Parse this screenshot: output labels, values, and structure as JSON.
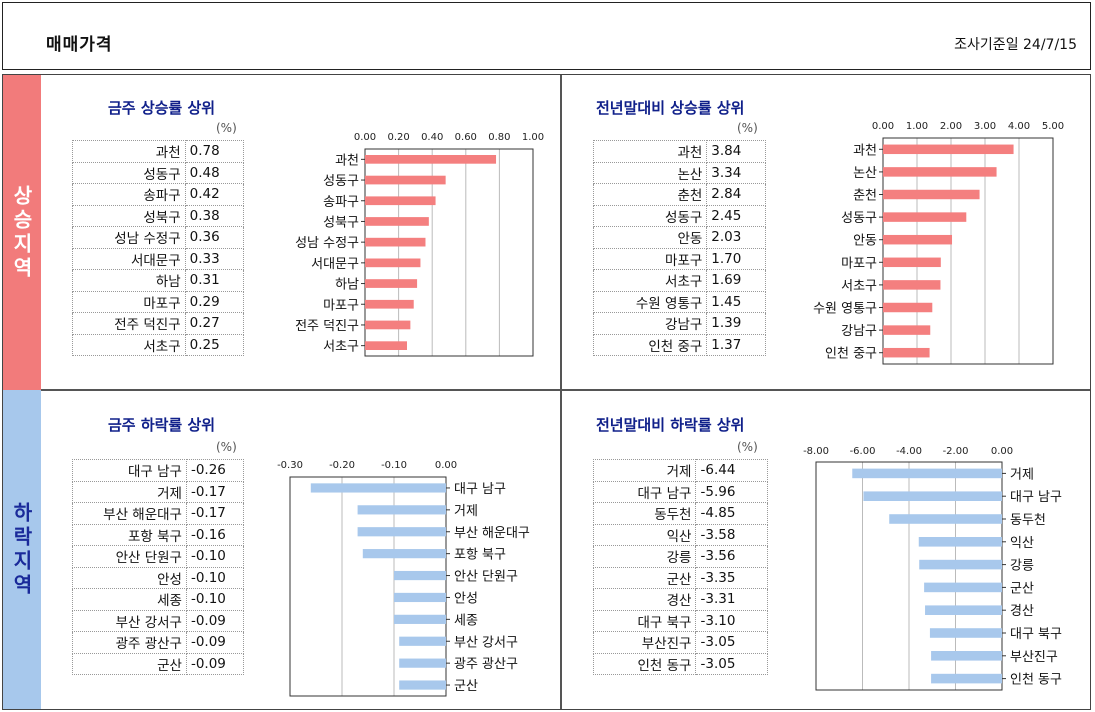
{
  "header": {
    "title": "매매가격",
    "date": "조사기준일 24/7/15"
  },
  "side": {
    "up": "상승지역",
    "down": "하락지역"
  },
  "unit": "(%)",
  "panels": {
    "weekly_up": {
      "title": "금주 상승률 상위"
    },
    "ytd_up": {
      "title": "전년말대비 상승률 상위"
    },
    "weekly_down": {
      "title": "금주 하락률 상위"
    },
    "ytd_down": {
      "title": "전년말대비 하락률 상위"
    }
  },
  "chart_data": [
    {
      "type": "bar",
      "title": "금주 상승률 상위",
      "categories": [
        "과천",
        "성동구",
        "송파구",
        "성북구",
        "성남 수정구",
        "서대문구",
        "하남",
        "마포구",
        "전주 덕진구",
        "서초구"
      ],
      "values": [
        0.78,
        0.48,
        0.42,
        0.38,
        0.36,
        0.33,
        0.31,
        0.29,
        0.27,
        0.25
      ],
      "value_labels": [
        "0.78",
        "0.48",
        "0.42",
        "0.38",
        "0.36",
        "0.33",
        "0.31",
        "0.29",
        "0.27",
        "0.25"
      ],
      "xlim": [
        0,
        1.0
      ],
      "ticks": [
        "0.00",
        "0.20",
        "0.40",
        "0.60",
        "0.80",
        "1.00"
      ],
      "color": "#f47f7f"
    },
    {
      "type": "bar",
      "title": "전년말대비 상승률 상위",
      "categories": [
        "과천",
        "논산",
        "춘천",
        "성동구",
        "안동",
        "마포구",
        "서초구",
        "수원 영통구",
        "강남구",
        "인천 중구"
      ],
      "values": [
        3.84,
        3.34,
        2.84,
        2.45,
        2.03,
        1.7,
        1.69,
        1.45,
        1.39,
        1.37
      ],
      "value_labels": [
        "3.84",
        "3.34",
        "2.84",
        "2.45",
        "2.03",
        "1.70",
        "1.69",
        "1.45",
        "1.39",
        "1.37"
      ],
      "xlim": [
        0,
        5.0
      ],
      "ticks": [
        "0.00",
        "1.00",
        "2.00",
        "3.00",
        "4.00",
        "5.00"
      ],
      "color": "#f47f7f"
    },
    {
      "type": "bar",
      "title": "금주 하락률 상위",
      "categories": [
        "대구 남구",
        "거제",
        "부산 해운대구",
        "포항 북구",
        "안산 단원구",
        "안성",
        "세종",
        "부산 강서구",
        "광주 광산구",
        "군산"
      ],
      "values": [
        -0.26,
        -0.17,
        -0.17,
        -0.16,
        -0.1,
        -0.1,
        -0.1,
        -0.09,
        -0.09,
        -0.09
      ],
      "value_labels": [
        "-0.26",
        "-0.17",
        "-0.17",
        "-0.16",
        "-0.10",
        "-0.10",
        "-0.10",
        "-0.09",
        "-0.09",
        "-0.09"
      ],
      "xlim": [
        -0.3,
        0
      ],
      "ticks": [
        "-0.30",
        "-0.20",
        "-0.10",
        "0.00"
      ],
      "color": "#a8c8ec"
    },
    {
      "type": "bar",
      "title": "전년말대비 하락률 상위",
      "categories": [
        "거제",
        "대구 남구",
        "동두천",
        "익산",
        "강릉",
        "군산",
        "경산",
        "대구 북구",
        "부산진구",
        "인천 동구"
      ],
      "values": [
        -6.44,
        -5.96,
        -4.85,
        -3.58,
        -3.56,
        -3.35,
        -3.31,
        -3.1,
        -3.05,
        -3.05
      ],
      "value_labels": [
        "-6.44",
        "-5.96",
        "-4.85",
        "-3.58",
        "-3.56",
        "-3.35",
        "-3.31",
        "-3.10",
        "-3.05",
        "-3.05"
      ],
      "xlim": [
        -8.0,
        0
      ],
      "ticks": [
        "-8.00",
        "-6.00",
        "-4.00",
        "-2.00",
        "0.00"
      ],
      "color": "#a8c8ec"
    }
  ]
}
